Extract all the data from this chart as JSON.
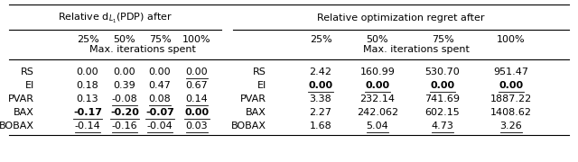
{
  "left_header": "Relative d$_{L_1}$(PDP) after",
  "right_header": "Relative optimization regret after",
  "sub_header": "Max. iterations spent",
  "col_headers": [
    "25%",
    "50%",
    "75%",
    "100%"
  ],
  "rows": [
    "RS",
    "EI",
    "PVAR",
    "BAX",
    "BOBAX"
  ],
  "left_data": [
    [
      "0.00",
      "0.00",
      "0.00",
      "0.00"
    ],
    [
      "0.18",
      "0.39",
      "0.47",
      "0.67"
    ],
    [
      "0.13",
      "-0.08",
      "0.08",
      "0.14"
    ],
    [
      "-0.17",
      "-0.20",
      "-0.07",
      "0.00"
    ],
    [
      "-0.14",
      "-0.16",
      "-0.04",
      "0.03"
    ]
  ],
  "right_data": [
    [
      "2.42",
      "160.99",
      "530.70",
      "951.47"
    ],
    [
      "0.00",
      "0.00",
      "0.00",
      "0.00"
    ],
    [
      "3.38",
      "232.14",
      "741.69",
      "1887.22"
    ],
    [
      "2.27",
      "242.062",
      "602.15",
      "1408.62"
    ],
    [
      "1.68",
      "5.04",
      "4.73",
      "3.26"
    ]
  ],
  "left_bold": [
    [
      false,
      false,
      false,
      false
    ],
    [
      false,
      false,
      false,
      false
    ],
    [
      false,
      false,
      false,
      false
    ],
    [
      true,
      true,
      true,
      true
    ],
    [
      false,
      false,
      false,
      false
    ]
  ],
  "left_underline": [
    [
      false,
      false,
      false,
      true
    ],
    [
      false,
      false,
      false,
      false
    ],
    [
      false,
      true,
      true,
      true
    ],
    [
      true,
      true,
      true,
      true
    ],
    [
      true,
      true,
      true,
      true
    ]
  ],
  "right_bold": [
    [
      false,
      false,
      false,
      false
    ],
    [
      true,
      true,
      true,
      true
    ],
    [
      false,
      false,
      false,
      false
    ],
    [
      false,
      false,
      false,
      false
    ],
    [
      false,
      false,
      false,
      false
    ]
  ],
  "right_underline": [
    [
      false,
      false,
      false,
      false
    ],
    [
      true,
      true,
      true,
      true
    ],
    [
      false,
      false,
      false,
      false
    ],
    [
      false,
      false,
      false,
      false
    ],
    [
      false,
      true,
      true,
      true
    ]
  ],
  "bg_color": "#ffffff",
  "text_color": "#000000",
  "fontsize": 8.0
}
